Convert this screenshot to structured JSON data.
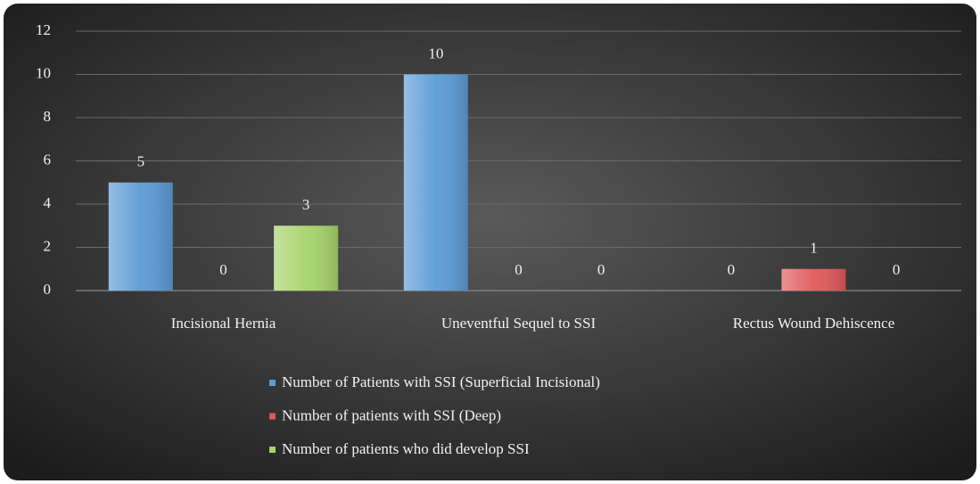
{
  "chart_data": {
    "type": "bar",
    "categories": [
      "Incisional Hernia",
      "Uneventful Sequel to SSI",
      "Rectus Wound Dehiscence"
    ],
    "series": [
      {
        "name": "Number of Patients with SSI (Superficial Incisional)",
        "color": "#5b9bd5",
        "values": [
          5,
          10,
          0
        ]
      },
      {
        "name": "Number of patients  with SSI (Deep)",
        "color": "#e0595a",
        "values": [
          0,
          0,
          1
        ]
      },
      {
        "name": "Number of patients  who did develop SSI",
        "color": "#a6d46a",
        "values": [
          3,
          0,
          0
        ]
      }
    ],
    "ylim": [
      0,
      12
    ],
    "yticks": [
      0,
      2,
      4,
      6,
      8,
      10,
      12
    ],
    "grid": true,
    "legend": "bottom"
  }
}
